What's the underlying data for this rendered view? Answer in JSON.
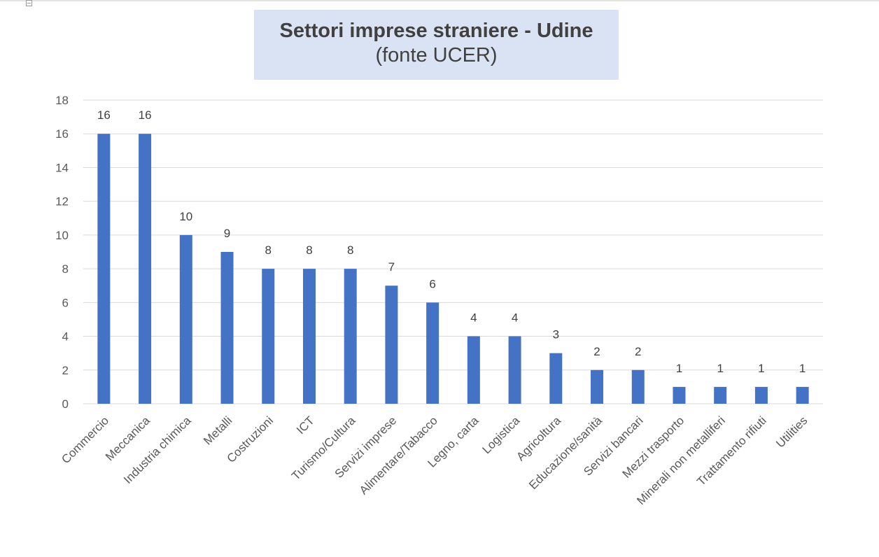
{
  "chart_data": {
    "type": "bar",
    "title": "Settori imprese straniere - Udine",
    "subtitle": "(fonte UCER)",
    "categories": [
      "Commercio",
      "Meccanica",
      "Industria chimica",
      "Metalli",
      "Costruzioni",
      "ICT",
      "Turismo/Cultura",
      "Servizi imprese",
      "Alimentare/Tabacco",
      "Legno, carta",
      "Logistica",
      "Agricoltura",
      "Educazione/sanità",
      "Servizi bancari",
      "Mezzi trasporto",
      "Minerali non metalliferi",
      "Trattamento rifiuti",
      "Utilities"
    ],
    "values": [
      16,
      16,
      10,
      9,
      8,
      8,
      8,
      7,
      6,
      4,
      4,
      3,
      2,
      2,
      1,
      1,
      1,
      1
    ],
    "ylim": [
      0,
      18
    ],
    "yticks": [
      0,
      2,
      4,
      6,
      8,
      10,
      12,
      14,
      16,
      18
    ],
    "grid": true,
    "legend": "none",
    "bar_color": "#4472c4",
    "grid_color": "#d9d9d9",
    "title_background": "#dae3f3"
  }
}
